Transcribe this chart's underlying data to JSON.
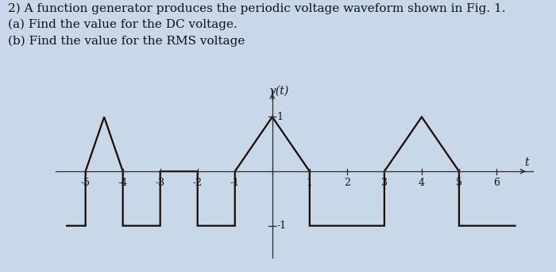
{
  "title_text": "2) A function generator produces the periodic voltage waveform shown in Fig. 1.\n(a) Find the value for the DC voltage.\n(b) Find the value for the RMS voltage",
  "fig_label": "Fig. 1",
  "ylabel": "v(t)",
  "xlabel": "t",
  "xlim": [
    -5.8,
    7.0
  ],
  "ylim": [
    -1.6,
    1.5
  ],
  "xticks": [
    -5,
    -4,
    -3,
    -2,
    -1,
    0,
    1,
    2,
    3,
    4,
    5,
    6
  ],
  "ytick_pos": [
    1,
    -1
  ],
  "ytick_labels": [
    "1",
    "-1"
  ],
  "waveform_color": "#1a0a00",
  "line_width": 1.6,
  "background_color": "#c8d8e8",
  "waveform_x": [
    -5.5,
    -5.0,
    -5.0,
    -4.5,
    -4.0,
    -4.0,
    -3.0,
    -3.0,
    -2.0,
    -2.0,
    -1.0,
    -1.0,
    0.0,
    1.0,
    1.0,
    3.0,
    3.0,
    4.0,
    5.0,
    5.0,
    6.5
  ],
  "waveform_y": [
    -1.0,
    -1.0,
    0.0,
    1.0,
    0.0,
    -1.0,
    -1.0,
    0.0,
    0.0,
    -1.0,
    -1.0,
    0.0,
    1.0,
    0.0,
    -1.0,
    -1.0,
    0.0,
    1.0,
    0.0,
    -1.0,
    -1.0
  ],
  "title_fontsize": 11,
  "axis_label_fontsize": 10,
  "tick_fontsize": 9,
  "fig_label_fontsize": 10
}
